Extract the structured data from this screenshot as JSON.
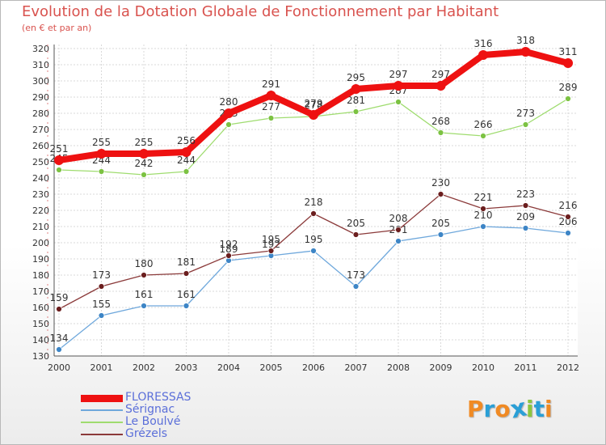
{
  "title": "Evolution de la Dotation Globale de Fonctionnement par Habitant",
  "subtitle": "(en € et par an)",
  "logo_text": "Proxiti",
  "colors": {
    "title": "#d9534f",
    "legend_text": "#5b6fd9",
    "grid": "#d9d9d9",
    "axis_text": "#333333",
    "logo_letters": [
      "#f08a24",
      "#2a9fd6",
      "#f08a24",
      "#2a9fd6",
      "#8cc63f",
      "#2a9fd6",
      "#f08a24"
    ]
  },
  "chart_data": {
    "type": "line",
    "title": "Evolution de la Dotation Globale de Fonctionnement par Habitant",
    "subtitle": "(en € et par an)",
    "xlabel": "",
    "ylabel": "",
    "categories": [
      "2000",
      "2001",
      "2002",
      "2003",
      "2004",
      "2005",
      "2006",
      "2007",
      "2008",
      "2009",
      "2010",
      "2011",
      "2012"
    ],
    "ylim": [
      130,
      320
    ],
    "yticks": [
      130,
      140,
      150,
      160,
      170,
      180,
      190,
      200,
      210,
      220,
      230,
      240,
      250,
      260,
      270,
      280,
      290,
      300,
      310,
      320
    ],
    "grid": true,
    "legend_position": "bottom-left",
    "series": [
      {
        "name": "FLORESSAS",
        "color": "#ee1111",
        "marker_color": "#ee1111",
        "emphasis": "thick",
        "values": [
          251,
          255,
          255,
          256,
          280,
          291,
          279,
          295,
          297,
          297,
          316,
          318,
          311
        ]
      },
      {
        "name": "Sérignac",
        "color": "#6fa8dc",
        "marker_color": "#3d85c6",
        "emphasis": "normal",
        "values": [
          134,
          155,
          161,
          161,
          189,
          192,
          195,
          173,
          201,
          205,
          210,
          209,
          206
        ]
      },
      {
        "name": "Le Boulvé",
        "color": "#9fdc6f",
        "marker_color": "#7cc242",
        "emphasis": "normal",
        "values": [
          245,
          244,
          242,
          244,
          273,
          277,
          278,
          281,
          287,
          268,
          266,
          273,
          289
        ]
      },
      {
        "name": "Grézels",
        "color": "#8b3a3a",
        "marker_color": "#6b1e1e",
        "emphasis": "normal",
        "values": [
          159,
          173,
          180,
          181,
          192,
          195,
          218,
          205,
          208,
          230,
          221,
          223,
          216
        ]
      }
    ]
  }
}
